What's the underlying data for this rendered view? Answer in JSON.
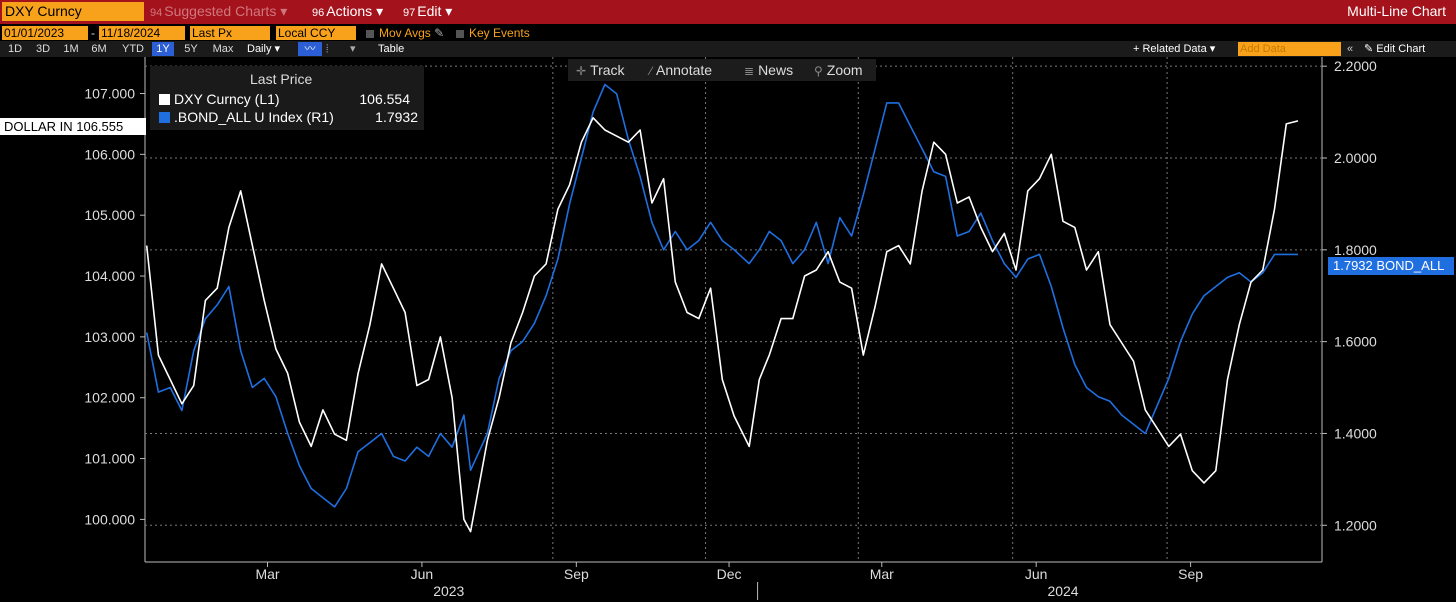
{
  "toolbar": {
    "ticker": "DXY Curncy",
    "suggested_num": "94",
    "suggested": "Suggested Charts",
    "actions_num": "96",
    "actions": "Actions",
    "edit_num": "97",
    "edit": "Edit",
    "chart_type": "Multi-Line Chart",
    "dropdown_glyph": "▾"
  },
  "settings": {
    "start_date": "01/01/2023",
    "date_sep": "-",
    "end_date": "11/18/2024",
    "price_field": "Last Px",
    "currency": "Local CCY",
    "mov_avgs": "Mov Avgs",
    "key_events": "Key Events"
  },
  "periods": [
    "1D",
    "3D",
    "1M",
    "6M",
    "YTD",
    "1Y",
    "5Y",
    "Max"
  ],
  "selected_period": "1Y",
  "frequency": "Daily",
  "table_label": "Table",
  "related_data": "+ Related Data",
  "add_data_placeholder": "Add Data",
  "edit_chart": "Edit Chart",
  "tools": {
    "track": "Track",
    "annotate": "Annotate",
    "news": "News",
    "zoom": "Zoom"
  },
  "legend": {
    "title": "Last Price",
    "entries": [
      {
        "label": "DXY Curncy  (L1)",
        "value": "106.554",
        "color": "#ffffff"
      },
      {
        "label": ".BOND_ALL U Index  (R1)",
        "value": "1.7932",
        "color": "#1f6fe0"
      }
    ]
  },
  "tags": {
    "dollar": "DOLLAR IN 106.555",
    "bond": "1.7932 BOND_ALL"
  },
  "colors": {
    "toolbar": "#a4121c",
    "orange": "#f7a21a",
    "dxy": "#ffffff",
    "bond": "#1f6fe0",
    "background": "#000000"
  },
  "chart_data": {
    "type": "line",
    "x_months": [
      "Mar",
      "Jun",
      "Sep",
      "Dec",
      "Mar",
      "Jun",
      "Sep"
    ],
    "x_years": [
      "2023",
      "2024"
    ],
    "x_range": [
      "2023-01-01",
      "2024-11-18"
    ],
    "y_left": {
      "ticks": [
        "100.000",
        "101.000",
        "102.000",
        "103.000",
        "104.000",
        "105.000",
        "106.000",
        "107.000"
      ],
      "range": [
        99.3,
        107.6
      ]
    },
    "y_right": {
      "ticks": [
        "1.2000",
        "1.4000",
        "1.6000",
        "1.8000",
        "2.0000",
        "2.2000"
      ],
      "range": [
        1.12,
        2.22
      ]
    },
    "grid": true,
    "series": [
      {
        "name": "DXY Curncy",
        "axis": "left",
        "color": "#ffffff",
        "x": [
          "2023-01-02",
          "2023-01-09",
          "2023-01-16",
          "2023-01-23",
          "2023-01-30",
          "2023-02-06",
          "2023-02-13",
          "2023-02-20",
          "2023-02-27",
          "2023-03-06",
          "2023-03-13",
          "2023-03-20",
          "2023-03-27",
          "2023-04-03",
          "2023-04-10",
          "2023-04-17",
          "2023-04-24",
          "2023-05-01",
          "2023-05-08",
          "2023-05-15",
          "2023-05-22",
          "2023-05-29",
          "2023-06-05",
          "2023-06-12",
          "2023-06-19",
          "2023-06-26",
          "2023-07-03",
          "2023-07-10",
          "2023-07-14",
          "2023-07-24",
          "2023-07-31",
          "2023-08-07",
          "2023-08-14",
          "2023-08-21",
          "2023-08-28",
          "2023-09-04",
          "2023-09-11",
          "2023-09-18",
          "2023-09-25",
          "2023-10-02",
          "2023-10-09",
          "2023-10-16",
          "2023-10-23",
          "2023-10-30",
          "2023-11-06",
          "2023-11-13",
          "2023-11-20",
          "2023-11-27",
          "2023-12-04",
          "2023-12-11",
          "2023-12-18",
          "2023-12-27",
          "2024-01-02",
          "2024-01-08",
          "2024-01-15",
          "2024-01-22",
          "2024-01-29",
          "2024-02-05",
          "2024-02-12",
          "2024-02-19",
          "2024-02-26",
          "2024-03-04",
          "2024-03-11",
          "2024-03-18",
          "2024-03-25",
          "2024-04-01",
          "2024-04-08",
          "2024-04-15",
          "2024-04-22",
          "2024-04-29",
          "2024-05-06",
          "2024-05-13",
          "2024-05-20",
          "2024-05-27",
          "2024-06-03",
          "2024-06-10",
          "2024-06-17",
          "2024-06-24",
          "2024-07-01",
          "2024-07-08",
          "2024-07-15",
          "2024-07-22",
          "2024-07-29",
          "2024-08-05",
          "2024-08-12",
          "2024-08-19",
          "2024-08-26",
          "2024-09-02",
          "2024-09-09",
          "2024-09-16",
          "2024-09-23",
          "2024-09-30",
          "2024-10-07",
          "2024-10-14",
          "2024-10-21",
          "2024-10-28",
          "2024-11-04",
          "2024-11-11",
          "2024-11-18"
        ],
        "y": [
          104.5,
          102.7,
          102.3,
          101.9,
          102.2,
          103.6,
          103.8,
          104.8,
          105.4,
          104.5,
          103.6,
          102.8,
          102.4,
          101.6,
          101.2,
          101.8,
          101.4,
          101.3,
          102.4,
          103.2,
          104.2,
          103.8,
          103.4,
          102.2,
          102.3,
          103.0,
          102.0,
          100.0,
          99.8,
          101.3,
          102.0,
          102.9,
          103.4,
          104.0,
          104.2,
          105.1,
          105.5,
          106.2,
          106.6,
          106.4,
          106.3,
          106.2,
          106.4,
          105.2,
          105.6,
          103.9,
          103.4,
          103.3,
          103.8,
          102.3,
          101.7,
          101.2,
          102.3,
          102.7,
          103.3,
          103.3,
          104.0,
          104.1,
          104.4,
          103.9,
          103.8,
          102.7,
          103.5,
          104.4,
          104.5,
          104.2,
          105.4,
          106.2,
          106.0,
          105.2,
          105.3,
          104.8,
          104.4,
          104.7,
          104.1,
          105.4,
          105.6,
          106.0,
          104.9,
          104.8,
          104.1,
          104.4,
          103.2,
          102.9,
          102.6,
          101.8,
          101.5,
          101.2,
          101.4,
          100.8,
          100.6,
          100.8,
          102.3,
          103.2,
          103.9,
          104.1,
          105.1,
          106.5,
          106.55
        ]
      },
      {
        "name": ".BOND_ALL U Index",
        "axis": "right",
        "color": "#1f6fe0",
        "x": [
          "2023-01-02",
          "2023-01-09",
          "2023-01-16",
          "2023-01-23",
          "2023-01-30",
          "2023-02-06",
          "2023-02-13",
          "2023-02-20",
          "2023-02-27",
          "2023-03-06",
          "2023-03-13",
          "2023-03-20",
          "2023-03-27",
          "2023-04-03",
          "2023-04-10",
          "2023-04-17",
          "2023-04-24",
          "2023-05-01",
          "2023-05-08",
          "2023-05-15",
          "2023-05-22",
          "2023-05-29",
          "2023-06-05",
          "2023-06-12",
          "2023-06-19",
          "2023-06-26",
          "2023-07-03",
          "2023-07-10",
          "2023-07-14",
          "2023-07-24",
          "2023-07-31",
          "2023-08-07",
          "2023-08-14",
          "2023-08-21",
          "2023-08-28",
          "2023-09-04",
          "2023-09-11",
          "2023-09-18",
          "2023-09-25",
          "2023-10-02",
          "2023-10-09",
          "2023-10-16",
          "2023-10-23",
          "2023-10-30",
          "2023-11-06",
          "2023-11-13",
          "2023-11-20",
          "2023-11-27",
          "2023-12-04",
          "2023-12-11",
          "2023-12-18",
          "2023-12-27",
          "2024-01-02",
          "2024-01-08",
          "2024-01-15",
          "2024-01-22",
          "2024-01-29",
          "2024-02-05",
          "2024-02-12",
          "2024-02-19",
          "2024-02-26",
          "2024-03-04",
          "2024-03-11",
          "2024-03-18",
          "2024-03-25",
          "2024-04-01",
          "2024-04-08",
          "2024-04-15",
          "2024-04-22",
          "2024-04-29",
          "2024-05-06",
          "2024-05-13",
          "2024-05-20",
          "2024-05-27",
          "2024-06-03",
          "2024-06-10",
          "2024-06-17",
          "2024-06-24",
          "2024-07-01",
          "2024-07-08",
          "2024-07-15",
          "2024-07-22",
          "2024-07-29",
          "2024-08-05",
          "2024-08-12",
          "2024-08-19",
          "2024-08-26",
          "2024-09-02",
          "2024-09-09",
          "2024-09-16",
          "2024-09-23",
          "2024-09-30",
          "2024-10-07",
          "2024-10-14",
          "2024-10-21",
          "2024-10-28",
          "2024-11-04",
          "2024-11-11",
          "2024-11-18"
        ],
        "y": [
          1.62,
          1.49,
          1.5,
          1.45,
          1.58,
          1.65,
          1.68,
          1.72,
          1.58,
          1.5,
          1.52,
          1.48,
          1.4,
          1.33,
          1.28,
          1.26,
          1.24,
          1.28,
          1.36,
          1.38,
          1.4,
          1.35,
          1.34,
          1.37,
          1.35,
          1.4,
          1.37,
          1.44,
          1.32,
          1.4,
          1.52,
          1.58,
          1.6,
          1.64,
          1.7,
          1.78,
          1.9,
          2.0,
          2.1,
          2.16,
          2.14,
          2.04,
          1.96,
          1.86,
          1.8,
          1.84,
          1.8,
          1.82,
          1.86,
          1.82,
          1.8,
          1.77,
          1.8,
          1.84,
          1.82,
          1.77,
          1.8,
          1.86,
          1.77,
          1.87,
          1.83,
          1.92,
          2.02,
          2.12,
          2.12,
          2.07,
          2.02,
          1.97,
          1.96,
          1.83,
          1.84,
          1.88,
          1.82,
          1.77,
          1.74,
          1.78,
          1.79,
          1.72,
          1.63,
          1.55,
          1.5,
          1.48,
          1.47,
          1.44,
          1.42,
          1.4,
          1.46,
          1.52,
          1.6,
          1.66,
          1.7,
          1.72,
          1.74,
          1.75,
          1.73,
          1.75,
          1.79,
          1.79,
          1.79
        ]
      }
    ]
  }
}
